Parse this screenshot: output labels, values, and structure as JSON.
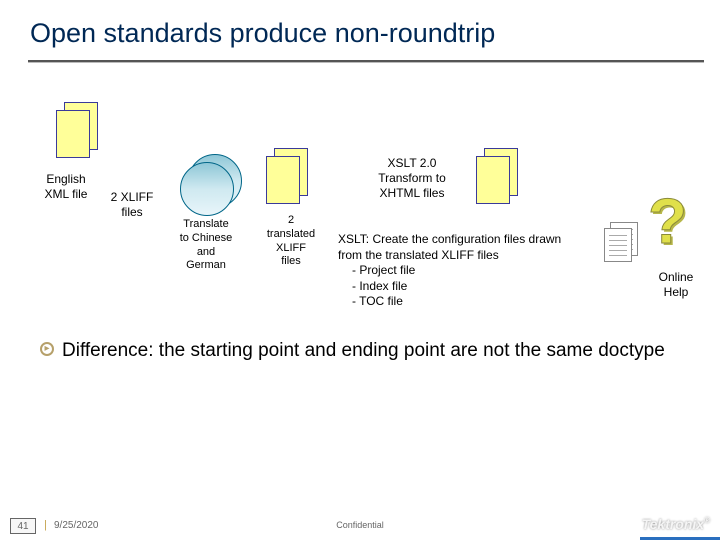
{
  "title": "Open standards produce non-roundtrip",
  "colors": {
    "title": "#002855",
    "box_fill": "#ffff99",
    "box_border": "#3a3a9a",
    "circle_border": "#006688",
    "circle_grad_top": "#8fc7d7",
    "circle_grad_bot": "#e8f5fa",
    "qmark": "#e0e04a",
    "bullet_ring": "#b6a06a",
    "footer_accent": "#2a6fbf"
  },
  "diagram": {
    "english_label": "English\nXML file",
    "xliff_label": "2 XLIFF\nfiles",
    "translate_label": "Translate\nto Chinese\nand\nGerman",
    "two_translated_label": "2\ntranslated\nXLIFF\nfiles",
    "xslt20_label": "XSLT 2.0\nTransform to\nXHTML files",
    "xslt_desc_head": "XSLT: Create the configuration files drawn from the translated XLIFF files",
    "xslt_desc_items": [
      "- Project file",
      "- Index file",
      "- TOC file"
    ],
    "online_help_label": "Online\nHelp"
  },
  "bullet": "Difference: the starting point and ending point are not the same doctype",
  "footer": {
    "page": "41",
    "date": "9/25/2020",
    "confidential": "Confidential",
    "logo": "Tektronix"
  }
}
